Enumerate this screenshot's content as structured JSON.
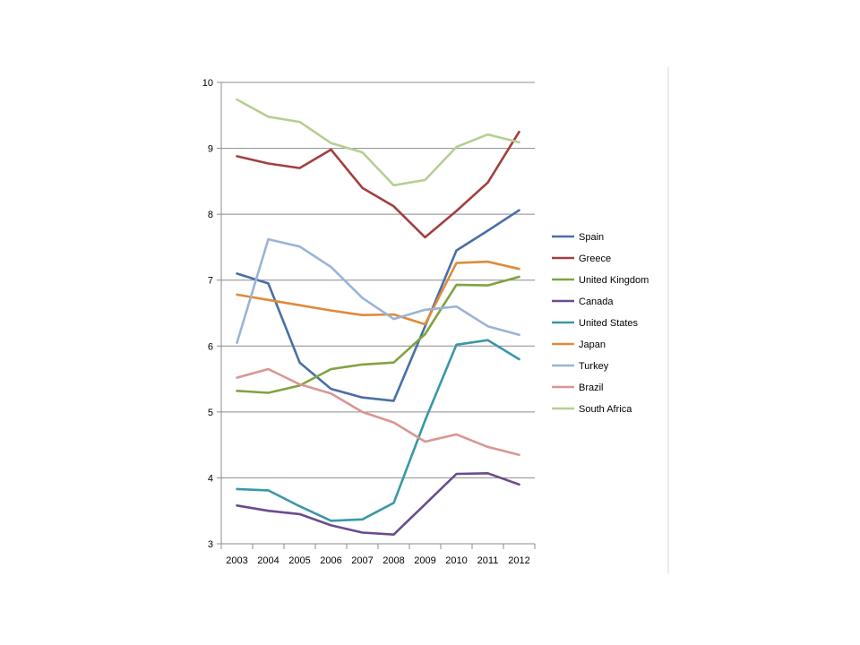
{
  "chart_data": {
    "type": "line",
    "title": "",
    "xlabel": "",
    "ylabel": "",
    "categories": [
      "2003",
      "2004",
      "2005",
      "2006",
      "2007",
      "2008",
      "2009",
      "2010",
      "2011",
      "2012"
    ],
    "ylim": [
      3,
      10
    ],
    "yticks": [
      "3",
      "4",
      "5",
      "6",
      "7",
      "8",
      "9",
      "10"
    ],
    "grid": "horizontal",
    "legend_position": "right",
    "series": [
      {
        "name": "Spain",
        "color": "#4a6fa5",
        "values": [
          7.1,
          6.95,
          5.75,
          5.35,
          5.22,
          5.17,
          6.3,
          7.45,
          7.75,
          8.06
        ]
      },
      {
        "name": "Greece",
        "color": "#a33f3f",
        "values": [
          8.88,
          8.77,
          8.7,
          8.98,
          8.4,
          8.12,
          7.65,
          8.05,
          8.48,
          9.25
        ]
      },
      {
        "name": "United Kingdom",
        "color": "#7fa340",
        "values": [
          5.32,
          5.29,
          5.4,
          5.65,
          5.72,
          5.75,
          6.18,
          6.93,
          6.92,
          7.05
        ]
      },
      {
        "name": "Canada",
        "color": "#6a4c8c",
        "values": [
          3.58,
          3.5,
          3.45,
          3.28,
          3.17,
          3.14,
          3.6,
          4.06,
          4.07,
          3.9
        ]
      },
      {
        "name": "United States",
        "color": "#3a97a8",
        "values": [
          3.83,
          3.81,
          3.57,
          3.35,
          3.37,
          3.62,
          4.87,
          6.02,
          6.09,
          5.8
        ]
      },
      {
        "name": "Japan",
        "color": "#e08a3a",
        "values": [
          6.78,
          6.7,
          6.62,
          6.54,
          6.47,
          6.48,
          6.33,
          7.26,
          7.28,
          7.17
        ]
      },
      {
        "name": "Turkey",
        "color": "#9bb3d8",
        "values": [
          6.05,
          7.62,
          7.51,
          7.2,
          6.73,
          6.41,
          6.55,
          6.6,
          6.3,
          6.17
        ]
      },
      {
        "name": "Brazil",
        "color": "#d99694",
        "values": [
          5.52,
          5.65,
          5.42,
          5.28,
          5.0,
          4.84,
          4.55,
          4.66,
          4.47,
          4.35
        ]
      },
      {
        "name": "South Africa",
        "color": "#b5cf92",
        "values": [
          9.74,
          9.48,
          9.4,
          9.08,
          8.94,
          8.44,
          8.52,
          9.02,
          9.21,
          9.09
        ]
      }
    ]
  }
}
